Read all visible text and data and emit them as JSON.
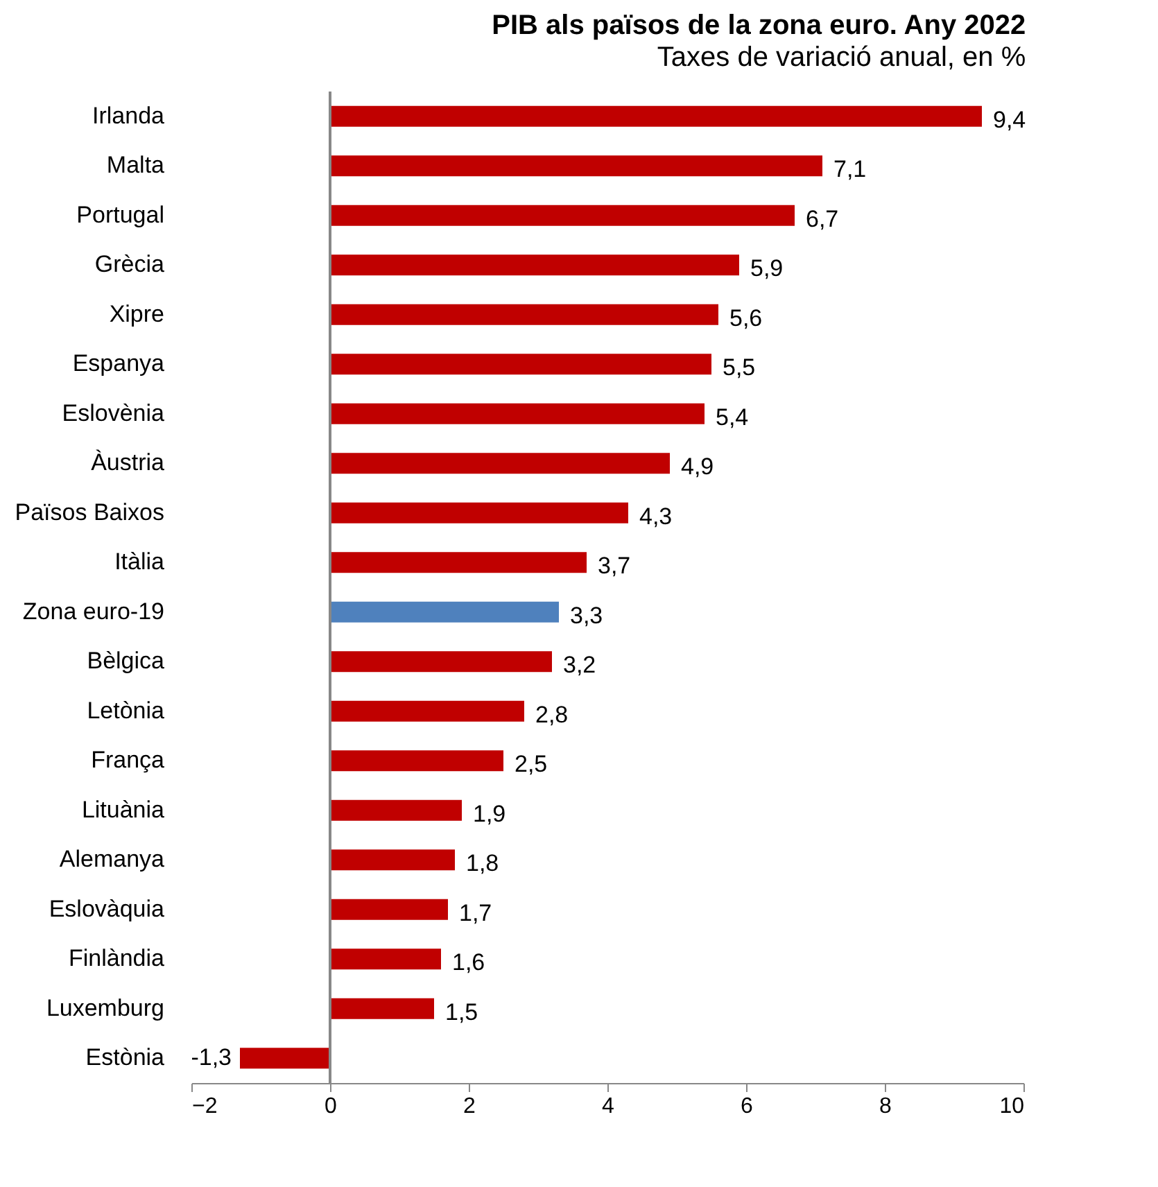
{
  "chart_data": {
    "type": "bar",
    "orientation": "horizontal",
    "title": "PIB als països de la zona euro. Any 2022",
    "subtitle": "Taxes de variació anual, en %",
    "categories": [
      "Irlanda",
      "Malta",
      "Portugal",
      "Grècia",
      "Xipre",
      "Espanya",
      "Eslovènia",
      "Àustria",
      "Països Baixos",
      "Itàlia",
      "Zona euro-19",
      "Bèlgica",
      "Letònia",
      "França",
      "Lituània",
      "Alemanya",
      "Eslovàquia",
      "Finlàndia",
      "Luxemburg",
      "Estònia"
    ],
    "values": [
      9.4,
      7.1,
      6.7,
      5.9,
      5.6,
      5.5,
      5.4,
      4.9,
      4.3,
      3.7,
      3.3,
      3.2,
      2.8,
      2.5,
      1.9,
      1.8,
      1.7,
      1.6,
      1.5,
      -1.3
    ],
    "value_labels": [
      "9,4",
      "7,1",
      "6,7",
      "5,9",
      "5,6",
      "5,5",
      "5,4",
      "4,9",
      "4,3",
      "3,7",
      "3,3",
      "3,2",
      "2,8",
      "2,5",
      "1,9",
      "1,8",
      "1,7",
      "1,6",
      "1,5",
      "-1,3"
    ],
    "colors": [
      "#c00000",
      "#c00000",
      "#c00000",
      "#c00000",
      "#c00000",
      "#c00000",
      "#c00000",
      "#c00000",
      "#c00000",
      "#c00000",
      "#4f81bd",
      "#c00000",
      "#c00000",
      "#c00000",
      "#c00000",
      "#c00000",
      "#c00000",
      "#c00000",
      "#c00000",
      "#c00000"
    ],
    "xlim": [
      -2,
      10
    ],
    "xticks": [
      -2,
      0,
      2,
      4,
      6,
      8,
      10
    ]
  }
}
